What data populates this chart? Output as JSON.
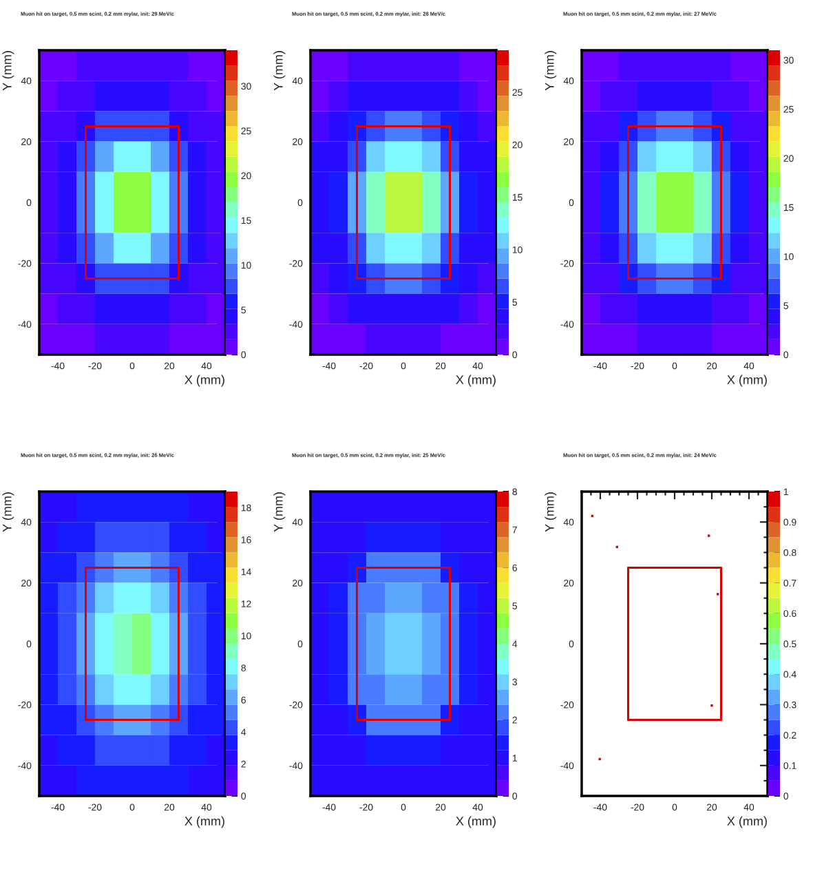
{
  "chart_data": [
    {
      "type": "heatmap",
      "title": "Muon hit on target, 0.5 mm scint, 0.2 mm mylar, init: 29 MeV/c",
      "xlabel": "X (mm)",
      "ylabel": "Y (mm)",
      "x": [
        -45,
        -35,
        -25,
        -15,
        -5,
        5,
        15,
        25,
        35,
        45
      ],
      "y": [
        45,
        35,
        25,
        15,
        5,
        -5,
        -15,
        -25,
        -35,
        -45
      ],
      "cells": [
        [
          1,
          1,
          2,
          2,
          2,
          2,
          2,
          2,
          1,
          1
        ],
        [
          1,
          2,
          3,
          4,
          4,
          4,
          4,
          3,
          2,
          1
        ],
        [
          2,
          3,
          5,
          7,
          8,
          8,
          7,
          5,
          3,
          2
        ],
        [
          3,
          4,
          7,
          11,
          14,
          14,
          11,
          7,
          4,
          2
        ],
        [
          3,
          5,
          9,
          15,
          20,
          20,
          15,
          9,
          5,
          3
        ],
        [
          3,
          5,
          9,
          14,
          19,
          19,
          14,
          9,
          5,
          3
        ],
        [
          3,
          4,
          7,
          11,
          14,
          14,
          11,
          7,
          4,
          3
        ],
        [
          2,
          3,
          5,
          7,
          8,
          8,
          7,
          5,
          3,
          2
        ],
        [
          1,
          2,
          3,
          4,
          4,
          4,
          4,
          3,
          2,
          1
        ],
        [
          1,
          1,
          1,
          2,
          2,
          2,
          2,
          1,
          1,
          1
        ]
      ],
      "clim": [
        0,
        34
      ],
      "cticks": [
        0,
        5,
        10,
        15,
        20,
        25,
        30
      ],
      "xlim": [
        -50,
        50
      ],
      "ylim": [
        -50,
        50
      ],
      "xticks": [
        -40,
        -20,
        0,
        20,
        40
      ],
      "yticks": [
        -40,
        -20,
        0,
        20,
        40
      ],
      "series": [
        {
          "type": "line",
          "color": "#dd0000",
          "x": [
            -25,
            25
          ],
          "values": [
            -25,
            -25
          ]
        },
        {
          "type": "line",
          "color": "#dd0000",
          "x": [
            -25,
            25
          ],
          "values": [
            25,
            25
          ]
        },
        {
          "type": "line",
          "color": "#dd0000",
          "x": [
            -25,
            -25
          ],
          "values": [
            -25,
            25
          ]
        },
        {
          "type": "line",
          "color": "#dd0000",
          "x": [
            25,
            25
          ],
          "values": [
            -25,
            25
          ]
        }
      ]
    },
    {
      "type": "heatmap",
      "title": "Muon hit on target, 0.5 mm scint, 0.2 mm mylar, init: 28 MeV/c",
      "xlabel": "X (mm)",
      "ylabel": "Y (mm)",
      "x": [
        -45,
        -35,
        -25,
        -15,
        -5,
        5,
        15,
        25,
        35,
        45
      ],
      "y": [
        45,
        35,
        25,
        15,
        5,
        -5,
        -15,
        -25,
        -35,
        -45
      ],
      "cells": [
        [
          1,
          1,
          2,
          2,
          2,
          2,
          2,
          2,
          1,
          1
        ],
        [
          1,
          2,
          3,
          4,
          4,
          4,
          4,
          3,
          2,
          1
        ],
        [
          2,
          3,
          5,
          7,
          8,
          8,
          7,
          5,
          3,
          2
        ],
        [
          3,
          4,
          7,
          11,
          13,
          13,
          11,
          7,
          4,
          3
        ],
        [
          3,
          5,
          9,
          14,
          18,
          18,
          14,
          9,
          5,
          3
        ],
        [
          3,
          5,
          9,
          14,
          18,
          18,
          14,
          9,
          5,
          3
        ],
        [
          3,
          4,
          7,
          11,
          13,
          13,
          11,
          7,
          4,
          3
        ],
        [
          2,
          3,
          5,
          7,
          8,
          8,
          7,
          5,
          3,
          2
        ],
        [
          1,
          2,
          3,
          4,
          4,
          4,
          4,
          3,
          2,
          1
        ],
        [
          1,
          1,
          1,
          2,
          2,
          2,
          2,
          1,
          1,
          1
        ]
      ],
      "clim": [
        0,
        29
      ],
      "cticks": [
        0,
        5,
        10,
        15,
        20,
        25
      ],
      "xlim": [
        -50,
        50
      ],
      "ylim": [
        -50,
        50
      ],
      "xticks": [
        -40,
        -20,
        0,
        20,
        40
      ],
      "yticks": [
        -40,
        -20,
        0,
        20,
        40
      ],
      "series": [
        {
          "type": "line",
          "color": "#dd0000",
          "x": [
            -25,
            25
          ],
          "values": [
            -25,
            -25
          ]
        },
        {
          "type": "line",
          "color": "#dd0000",
          "x": [
            -25,
            25
          ],
          "values": [
            25,
            25
          ]
        },
        {
          "type": "line",
          "color": "#dd0000",
          "x": [
            -25,
            -25
          ],
          "values": [
            -25,
            25
          ]
        },
        {
          "type": "line",
          "color": "#dd0000",
          "x": [
            25,
            25
          ],
          "values": [
            -25,
            25
          ]
        }
      ]
    },
    {
      "type": "heatmap",
      "title": "Muon hit on target, 0.5 mm scint, 0.2 mm mylar, init: 27 MeV/c",
      "xlabel": "X (mm)",
      "ylabel": "Y (mm)",
      "x": [
        -45,
        -35,
        -25,
        -15,
        -5,
        5,
        15,
        25,
        35,
        45
      ],
      "y": [
        45,
        35,
        25,
        15,
        5,
        -5,
        -15,
        -25,
        -35,
        -45
      ],
      "cells": [
        [
          1,
          1,
          2,
          2,
          2,
          2,
          2,
          2,
          1,
          1
        ],
        [
          1,
          2,
          3,
          4,
          4,
          4,
          4,
          3,
          2,
          1
        ],
        [
          2,
          3,
          5,
          7,
          8,
          8,
          7,
          5,
          3,
          2
        ],
        [
          3,
          4,
          7,
          11,
          13,
          13,
          11,
          7,
          4,
          3
        ],
        [
          3,
          5,
          9,
          14,
          18,
          18,
          14,
          9,
          5,
          3
        ],
        [
          3,
          5,
          9,
          14,
          18,
          18,
          14,
          9,
          5,
          3
        ],
        [
          3,
          4,
          7,
          11,
          13,
          13,
          11,
          7,
          4,
          3
        ],
        [
          2,
          3,
          5,
          7,
          8,
          8,
          7,
          5,
          3,
          2
        ],
        [
          1,
          2,
          3,
          4,
          4,
          4,
          4,
          3,
          2,
          1
        ],
        [
          1,
          1,
          1,
          2,
          2,
          2,
          2,
          1,
          1,
          1
        ]
      ],
      "clim": [
        0,
        31
      ],
      "cticks": [
        0,
        5,
        10,
        15,
        20,
        25,
        30
      ],
      "xlim": [
        -50,
        50
      ],
      "ylim": [
        -50,
        50
      ],
      "xticks": [
        -40,
        -20,
        0,
        20,
        40
      ],
      "yticks": [
        -40,
        -20,
        0,
        20,
        40
      ],
      "series": [
        {
          "type": "line",
          "color": "#dd0000",
          "x": [
            -25,
            25
          ],
          "values": [
            -25,
            -25
          ]
        },
        {
          "type": "line",
          "color": "#dd0000",
          "x": [
            -25,
            25
          ],
          "values": [
            25,
            25
          ]
        },
        {
          "type": "line",
          "color": "#dd0000",
          "x": [
            -25,
            -25
          ],
          "values": [
            -25,
            25
          ]
        },
        {
          "type": "line",
          "color": "#dd0000",
          "x": [
            25,
            25
          ],
          "values": [
            -25,
            25
          ]
        }
      ]
    },
    {
      "type": "heatmap",
      "title": "Muon hit on target, 0.5 mm scint, 0.2 mm mylar, init: 26 MeV/c",
      "xlabel": "X (mm)",
      "ylabel": "Y (mm)",
      "x": [
        -45,
        -35,
        -25,
        -15,
        -5,
        5,
        15,
        25,
        35,
        45
      ],
      "y": [
        45,
        35,
        25,
        15,
        5,
        -5,
        -15,
        -25,
        -35,
        -45
      ],
      "cells": [
        [
          2,
          2,
          3,
          3,
          3,
          3,
          3,
          3,
          2,
          2
        ],
        [
          2,
          3,
          3,
          4,
          4,
          4,
          4,
          3,
          3,
          2
        ],
        [
          3,
          3,
          4,
          5,
          6,
          6,
          5,
          4,
          3,
          3
        ],
        [
          3,
          4,
          5,
          7,
          8,
          8,
          7,
          5,
          4,
          3
        ],
        [
          3,
          4,
          6,
          8,
          9,
          10,
          8,
          6,
          4,
          3
        ],
        [
          3,
          4,
          6,
          8,
          9,
          10,
          8,
          6,
          4,
          3
        ],
        [
          3,
          4,
          5,
          7,
          8,
          8,
          7,
          5,
          4,
          3
        ],
        [
          3,
          3,
          4,
          5,
          6,
          6,
          5,
          4,
          3,
          3
        ],
        [
          2,
          3,
          3,
          4,
          4,
          4,
          4,
          3,
          3,
          2
        ],
        [
          2,
          2,
          3,
          3,
          3,
          3,
          3,
          3,
          2,
          2
        ]
      ],
      "clim": [
        0,
        19
      ],
      "cticks": [
        0,
        2,
        4,
        6,
        8,
        10,
        12,
        14,
        16,
        18
      ],
      "xlim": [
        -50,
        50
      ],
      "ylim": [
        -50,
        50
      ],
      "xticks": [
        -40,
        -20,
        0,
        20,
        40
      ],
      "yticks": [
        -40,
        -20,
        0,
        20,
        40
      ],
      "series": [
        {
          "type": "line",
          "color": "#dd0000",
          "x": [
            -25,
            25
          ],
          "values": [
            -25,
            -25
          ]
        },
        {
          "type": "line",
          "color": "#dd0000",
          "x": [
            -25,
            25
          ],
          "values": [
            25,
            25
          ]
        },
        {
          "type": "line",
          "color": "#dd0000",
          "x": [
            -25,
            -25
          ],
          "values": [
            -25,
            25
          ]
        },
        {
          "type": "line",
          "color": "#dd0000",
          "x": [
            25,
            25
          ],
          "values": [
            -25,
            25
          ]
        }
      ]
    },
    {
      "type": "heatmap",
      "title": "Muon hit on target, 0.5 mm scint, 0.2 mm mylar, init: 25 MeV/c",
      "xlabel": "X (mm)",
      "ylabel": "Y (mm)",
      "x": [
        -45,
        -35,
        -25,
        -15,
        -5,
        5,
        15,
        25,
        35,
        45
      ],
      "y": [
        45,
        35,
        25,
        15,
        5,
        -5,
        -15,
        -25,
        -35,
        -45
      ],
      "cells": [
        [
          1,
          1,
          1,
          1,
          1,
          1,
          1,
          1,
          1,
          1
        ],
        [
          1,
          1,
          1,
          1.5,
          1.5,
          1.5,
          1.5,
          1,
          1,
          1
        ],
        [
          1,
          1,
          1.5,
          2,
          2,
          2,
          2,
          1.5,
          1,
          1
        ],
        [
          1,
          1.5,
          2,
          2,
          2.5,
          2.5,
          2,
          2,
          1.5,
          1
        ],
        [
          1,
          1.5,
          2,
          2.5,
          3,
          3,
          2.5,
          2,
          1.5,
          1
        ],
        [
          1,
          1.5,
          2,
          2.5,
          3,
          3,
          2.5,
          2,
          1.5,
          1
        ],
        [
          1,
          1.5,
          2,
          2,
          2.5,
          2.5,
          2,
          2,
          1.5,
          1
        ],
        [
          1,
          1,
          1.5,
          2,
          2,
          2,
          2,
          1.5,
          1,
          1
        ],
        [
          1,
          1,
          1,
          1.5,
          1.5,
          1.5,
          1.5,
          1,
          1,
          1
        ],
        [
          1,
          1,
          1,
          1,
          1,
          1,
          1,
          1,
          1,
          1
        ]
      ],
      "clim": [
        0,
        8
      ],
      "cticks": [
        0,
        1,
        2,
        3,
        4,
        5,
        6,
        7,
        8
      ],
      "xlim": [
        -50,
        50
      ],
      "ylim": [
        -50,
        50
      ],
      "xticks": [
        -40,
        -20,
        0,
        20,
        40
      ],
      "yticks": [
        -40,
        -20,
        0,
        20,
        40
      ],
      "series": [
        {
          "type": "line",
          "color": "#dd0000",
          "x": [
            -25,
            25
          ],
          "values": [
            -25,
            -25
          ]
        },
        {
          "type": "line",
          "color": "#dd0000",
          "x": [
            -25,
            25
          ],
          "values": [
            25,
            25
          ]
        },
        {
          "type": "line",
          "color": "#dd0000",
          "x": [
            -25,
            -25
          ],
          "values": [
            -25,
            25
          ]
        },
        {
          "type": "line",
          "color": "#dd0000",
          "x": [
            25,
            25
          ],
          "values": [
            -25,
            25
          ]
        }
      ]
    },
    {
      "type": "scatter",
      "title": "Muon hit on target, 0.5 mm scint, 0.2 mm mylar, init: 24 MeV/c",
      "xlabel": "X (mm)",
      "ylabel": "Y (mm)",
      "clim": [
        0,
        1
      ],
      "cticks": [
        0,
        0.1,
        0.2,
        0.3,
        0.4,
        0.5,
        0.6,
        0.7,
        0.8,
        0.9,
        1
      ],
      "xlim": [
        -50,
        50
      ],
      "ylim": [
        -50,
        50
      ],
      "xticks": [
        -40,
        -20,
        0,
        20,
        40
      ],
      "yticks": [
        -40,
        -20,
        0,
        20,
        40
      ],
      "series": [
        {
          "type": "line",
          "color": "#dd0000",
          "x": [
            -25,
            25
          ],
          "values": [
            -25,
            -25
          ]
        },
        {
          "type": "line",
          "color": "#dd0000",
          "x": [
            -25,
            25
          ],
          "values": [
            25,
            25
          ]
        },
        {
          "type": "line",
          "color": "#dd0000",
          "x": [
            -25,
            -25
          ],
          "values": [
            -25,
            25
          ]
        },
        {
          "type": "line",
          "color": "#dd0000",
          "x": [
            25,
            25
          ],
          "values": [
            -25,
            25
          ]
        },
        {
          "type": "scatter",
          "marker": "square",
          "x": [
            -44.3,
            -31,
            18.4,
            23.2,
            20,
            -40.3
          ],
          "values": [
            42,
            31.8,
            35.5,
            16.3,
            -20.3,
            -37.9
          ],
          "cvalues": [
            1,
            1,
            1,
            1,
            1,
            1
          ]
        }
      ]
    }
  ]
}
